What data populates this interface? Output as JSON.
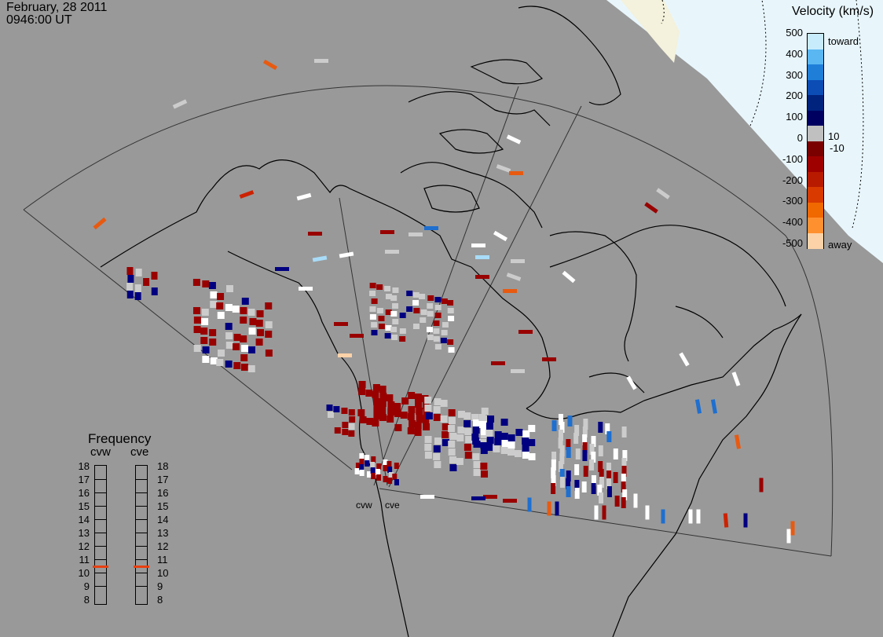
{
  "header": {
    "date": "February, 28 2011",
    "time": "0946:00 UT"
  },
  "colors": {
    "background": "#999999",
    "sunlit": "#e8f6fc",
    "land_outline": "#000000",
    "fov_outline": "#333333"
  },
  "velocity_scale": {
    "title": "Velocity (km/s)",
    "ticks": [
      "500",
      "400",
      "300",
      "200",
      "100",
      "0",
      "-100",
      "-200",
      "-300",
      "-400",
      "-500"
    ],
    "toward_label": "toward",
    "away_label": "away",
    "threshold_labels": [
      "10",
      "-10"
    ],
    "colors": [
      "#c8ecfc",
      "#5ab7f2",
      "#1f7fd8",
      "#0b4db5",
      "#00237e",
      "#000060",
      "#c0c0c0",
      "#7a0000",
      "#9e0000",
      "#b81a00",
      "#d83a00",
      "#f06800",
      "#ff9030",
      "#fcd2a8"
    ]
  },
  "frequency": {
    "title": "Frequency",
    "radars": [
      "cvw",
      "cve"
    ],
    "labels": [
      "18",
      "17",
      "16",
      "15",
      "14",
      "13",
      "12",
      "11",
      "10",
      "9",
      "8"
    ],
    "cvw_value": 10.6,
    "cve_value": 10.6,
    "marker_color": "#e84010"
  },
  "radar_sites": [
    "cvw",
    "cve"
  ]
}
